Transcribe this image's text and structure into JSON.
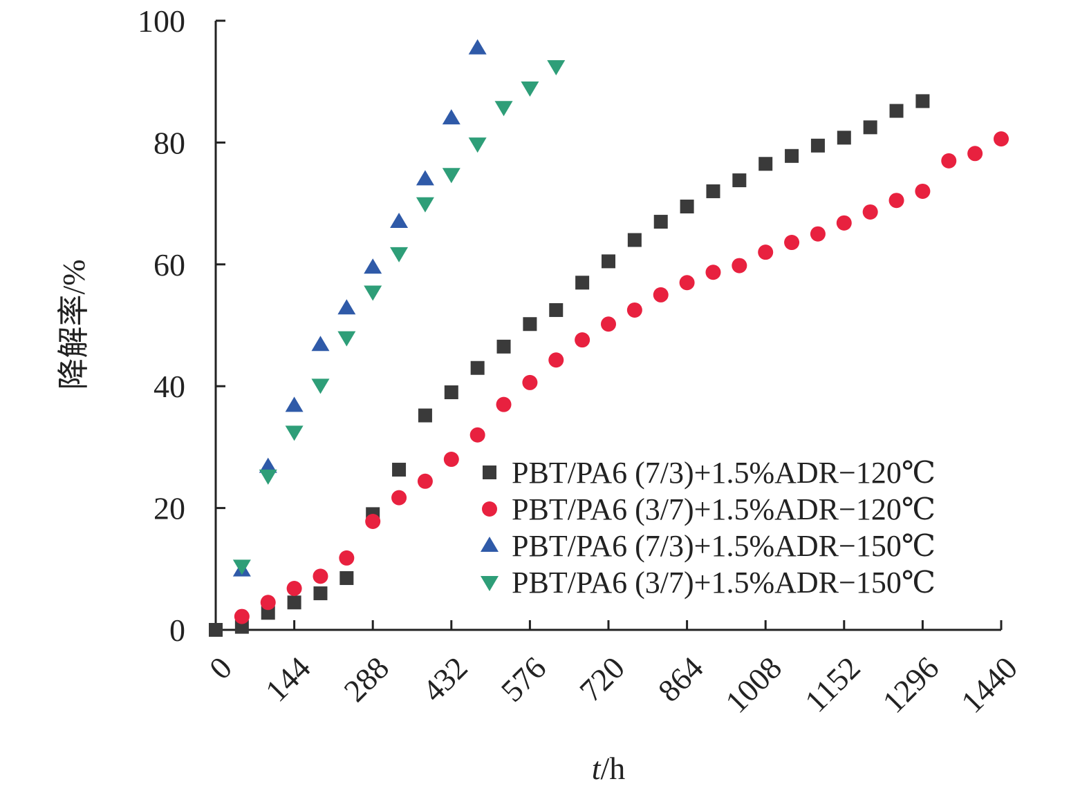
{
  "chart_data": {
    "type": "scatter",
    "title": "",
    "xlabel_italic": "t",
    "xlabel_rest": "/h",
    "ylabel": "降解率/%",
    "xlim": [
      0,
      1440
    ],
    "ylim": [
      0,
      100
    ],
    "xticks": [
      "0",
      "144",
      "288",
      "432",
      "576",
      "720",
      "864",
      "1008",
      "1152",
      "1296",
      "1440"
    ],
    "yticks": [
      "0",
      "20",
      "40",
      "60",
      "80",
      "100"
    ],
    "legend_position": "bottom-right",
    "grid": false,
    "series": [
      {
        "name": "PBT/PA6 (7/3)+1.5%ADR−120℃",
        "marker": "square",
        "color": "#3a3a3a",
        "points": [
          [
            0,
            0
          ],
          [
            48,
            0.5
          ],
          [
            96,
            2.8
          ],
          [
            144,
            4.5
          ],
          [
            192,
            6
          ],
          [
            240,
            8.5
          ],
          [
            288,
            19
          ],
          [
            336,
            26.3
          ],
          [
            384,
            35.2
          ],
          [
            432,
            39
          ],
          [
            480,
            43
          ],
          [
            528,
            46.5
          ],
          [
            576,
            50.2
          ],
          [
            624,
            52.5
          ],
          [
            672,
            57
          ],
          [
            720,
            60.5
          ],
          [
            768,
            64
          ],
          [
            816,
            67
          ],
          [
            864,
            69.5
          ],
          [
            912,
            72
          ],
          [
            960,
            73.8
          ],
          [
            1008,
            76.5
          ],
          [
            1056,
            77.8
          ],
          [
            1104,
            79.5
          ],
          [
            1152,
            80.8
          ],
          [
            1200,
            82.5
          ],
          [
            1248,
            85.2
          ],
          [
            1296,
            86.8
          ]
        ]
      },
      {
        "name": "PBT/PA6 (3/7)+1.5%ADR−120℃",
        "marker": "circle",
        "color": "#e8213f",
        "points": [
          [
            48,
            2.2
          ],
          [
            96,
            4.5
          ],
          [
            144,
            6.8
          ],
          [
            192,
            8.8
          ],
          [
            240,
            11.8
          ],
          [
            288,
            17.8
          ],
          [
            336,
            21.7
          ],
          [
            384,
            24.4
          ],
          [
            432,
            28
          ],
          [
            480,
            32
          ],
          [
            528,
            37
          ],
          [
            576,
            40.6
          ],
          [
            624,
            44.3
          ],
          [
            672,
            47.6
          ],
          [
            720,
            50.2
          ],
          [
            768,
            52.5
          ],
          [
            816,
            55
          ],
          [
            864,
            57
          ],
          [
            912,
            58.7
          ],
          [
            960,
            59.8
          ],
          [
            1008,
            62
          ],
          [
            1056,
            63.6
          ],
          [
            1104,
            65
          ],
          [
            1152,
            66.8
          ],
          [
            1200,
            68.6
          ],
          [
            1248,
            70.5
          ],
          [
            1296,
            72
          ],
          [
            1344,
            77
          ],
          [
            1392,
            78.2
          ],
          [
            1440,
            80.6
          ]
        ]
      },
      {
        "name": "PBT/PA6 (7/3)+1.5%ADR−150℃",
        "marker": "triangle-up",
        "color": "#2f5aa8",
        "points": [
          [
            48,
            9.8
          ],
          [
            96,
            26.8
          ],
          [
            144,
            36.8
          ],
          [
            192,
            46.8
          ],
          [
            240,
            52.8
          ],
          [
            288,
            59.5
          ],
          [
            336,
            67
          ],
          [
            384,
            74
          ],
          [
            432,
            84
          ],
          [
            480,
            95.5
          ]
        ]
      },
      {
        "name": "PBT/PA6 (3/7)+1.5%ADR−150℃",
        "marker": "triangle-down",
        "color": "#2e9e78",
        "points": [
          [
            48,
            10.5
          ],
          [
            96,
            25.3
          ],
          [
            144,
            32.5
          ],
          [
            192,
            40.2
          ],
          [
            240,
            48
          ],
          [
            288,
            55.5
          ],
          [
            336,
            61.8
          ],
          [
            384,
            70
          ],
          [
            432,
            74.8
          ],
          [
            480,
            79.8
          ],
          [
            528,
            85.8
          ],
          [
            576,
            89
          ],
          [
            624,
            92.5
          ]
        ]
      }
    ]
  }
}
